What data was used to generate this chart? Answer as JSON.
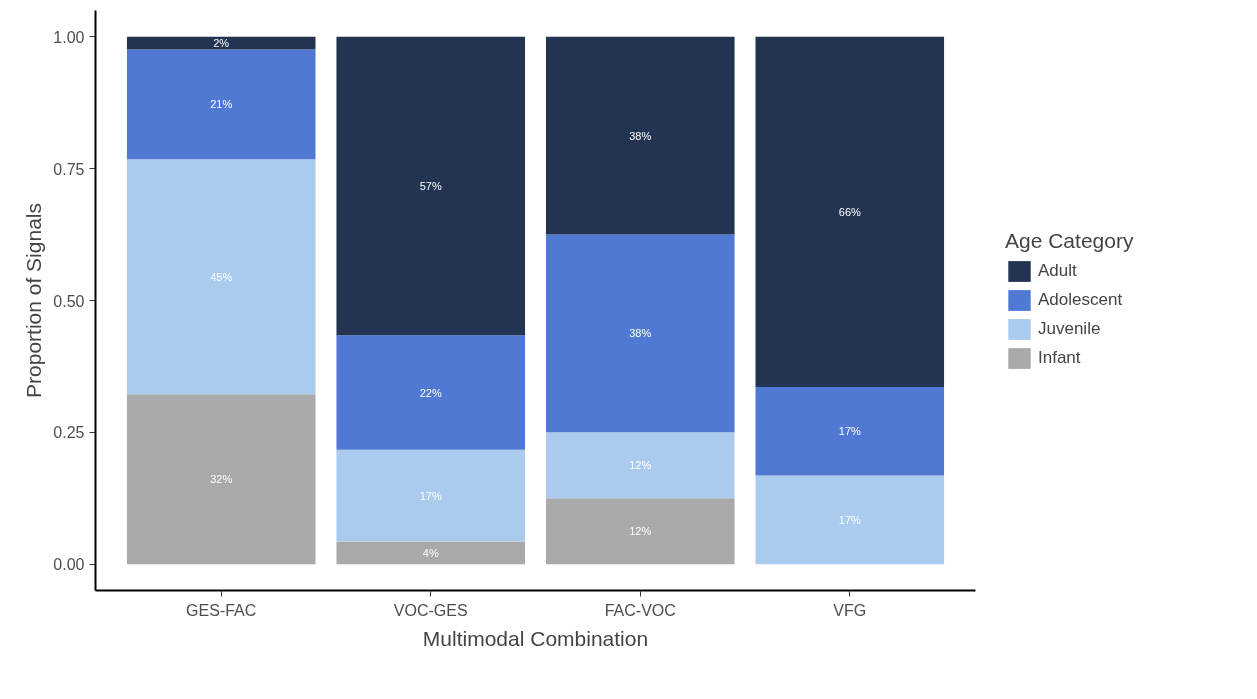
{
  "chart_data": {
    "type": "bar",
    "stacked": true,
    "xlabel": "Multimodal Combination",
    "ylabel": "Proportion of Signals",
    "legend_title": "Age Category",
    "legend": "right",
    "grid": false,
    "categories": [
      "GES-FAC",
      "VOC-GES",
      "FAC-VOC",
      "VFG"
    ],
    "ylim": [
      -0.05,
      1.05
    ],
    "yticks": [
      {
        "value": 0,
        "label": "0.00"
      },
      {
        "value": 0.25,
        "label": "0.25"
      },
      {
        "value": 0.5,
        "label": "0.50"
      },
      {
        "value": 0.75,
        "label": "0.75"
      },
      {
        "value": 1,
        "label": "1.00"
      }
    ],
    "series": [
      {
        "name": "Infant",
        "color": "#a9a9a9",
        "values": [
          0.322,
          0.043,
          0.125,
          0
        ],
        "value_labels": [
          "32%",
          "4%",
          "12%",
          null
        ]
      },
      {
        "name": "Juvenile",
        "color": "#abcbee",
        "values": [
          0.446,
          0.174,
          0.125,
          0.168
        ],
        "value_labels": [
          "45%",
          "17%",
          "12%",
          "17%"
        ]
      },
      {
        "name": "Adolescent",
        "color": "#5079d3",
        "values": [
          0.208,
          0.217,
          0.375,
          0.168
        ],
        "value_labels": [
          "21%",
          "22%",
          "38%",
          "17%"
        ]
      },
      {
        "name": "Adult",
        "color": "#233453",
        "values": [
          0.024,
          0.566,
          0.375,
          0.664
        ],
        "value_labels": [
          "2%",
          "57%",
          "38%",
          "66%"
        ]
      }
    ]
  }
}
